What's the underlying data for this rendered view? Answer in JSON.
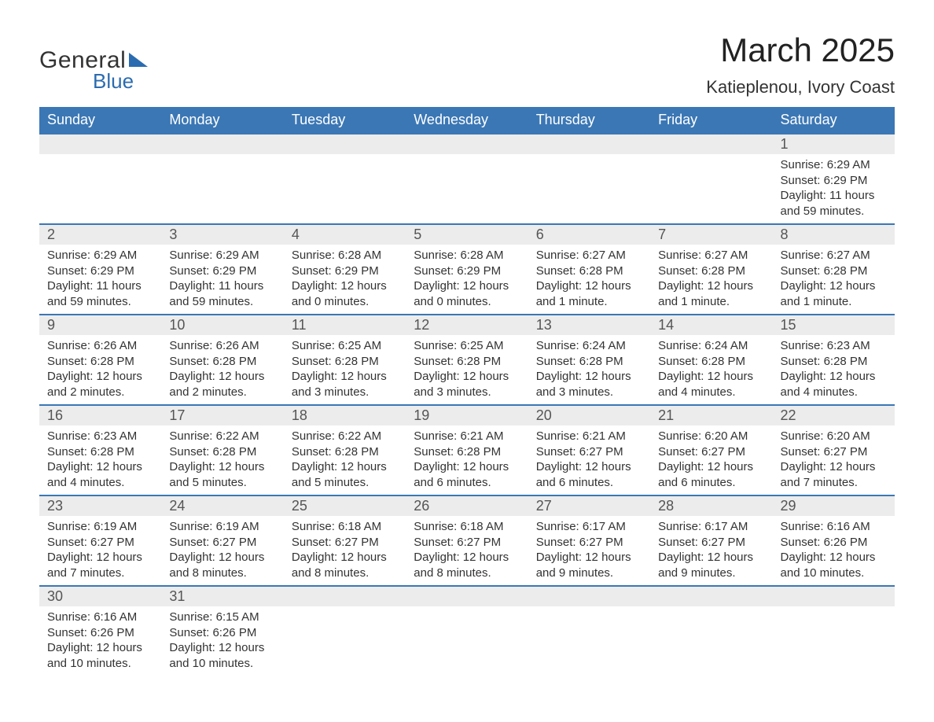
{
  "logo": {
    "word1": "General",
    "word2": "Blue"
  },
  "title": "March 2025",
  "location": "Katieplenou, Ivory Coast",
  "headerColor": "#3b77b5",
  "dayHeaders": [
    "Sunday",
    "Monday",
    "Tuesday",
    "Wednesday",
    "Thursday",
    "Friday",
    "Saturday"
  ],
  "weeks": [
    [
      null,
      null,
      null,
      null,
      null,
      null,
      {
        "n": "1",
        "sr": "Sunrise: 6:29 AM",
        "ss": "Sunset: 6:29 PM",
        "d1": "Daylight: 11 hours",
        "d2": "and 59 minutes."
      }
    ],
    [
      {
        "n": "2",
        "sr": "Sunrise: 6:29 AM",
        "ss": "Sunset: 6:29 PM",
        "d1": "Daylight: 11 hours",
        "d2": "and 59 minutes."
      },
      {
        "n": "3",
        "sr": "Sunrise: 6:29 AM",
        "ss": "Sunset: 6:29 PM",
        "d1": "Daylight: 11 hours",
        "d2": "and 59 minutes."
      },
      {
        "n": "4",
        "sr": "Sunrise: 6:28 AM",
        "ss": "Sunset: 6:29 PM",
        "d1": "Daylight: 12 hours",
        "d2": "and 0 minutes."
      },
      {
        "n": "5",
        "sr": "Sunrise: 6:28 AM",
        "ss": "Sunset: 6:29 PM",
        "d1": "Daylight: 12 hours",
        "d2": "and 0 minutes."
      },
      {
        "n": "6",
        "sr": "Sunrise: 6:27 AM",
        "ss": "Sunset: 6:28 PM",
        "d1": "Daylight: 12 hours",
        "d2": "and 1 minute."
      },
      {
        "n": "7",
        "sr": "Sunrise: 6:27 AM",
        "ss": "Sunset: 6:28 PM",
        "d1": "Daylight: 12 hours",
        "d2": "and 1 minute."
      },
      {
        "n": "8",
        "sr": "Sunrise: 6:27 AM",
        "ss": "Sunset: 6:28 PM",
        "d1": "Daylight: 12 hours",
        "d2": "and 1 minute."
      }
    ],
    [
      {
        "n": "9",
        "sr": "Sunrise: 6:26 AM",
        "ss": "Sunset: 6:28 PM",
        "d1": "Daylight: 12 hours",
        "d2": "and 2 minutes."
      },
      {
        "n": "10",
        "sr": "Sunrise: 6:26 AM",
        "ss": "Sunset: 6:28 PM",
        "d1": "Daylight: 12 hours",
        "d2": "and 2 minutes."
      },
      {
        "n": "11",
        "sr": "Sunrise: 6:25 AM",
        "ss": "Sunset: 6:28 PM",
        "d1": "Daylight: 12 hours",
        "d2": "and 3 minutes."
      },
      {
        "n": "12",
        "sr": "Sunrise: 6:25 AM",
        "ss": "Sunset: 6:28 PM",
        "d1": "Daylight: 12 hours",
        "d2": "and 3 minutes."
      },
      {
        "n": "13",
        "sr": "Sunrise: 6:24 AM",
        "ss": "Sunset: 6:28 PM",
        "d1": "Daylight: 12 hours",
        "d2": "and 3 minutes."
      },
      {
        "n": "14",
        "sr": "Sunrise: 6:24 AM",
        "ss": "Sunset: 6:28 PM",
        "d1": "Daylight: 12 hours",
        "d2": "and 4 minutes."
      },
      {
        "n": "15",
        "sr": "Sunrise: 6:23 AM",
        "ss": "Sunset: 6:28 PM",
        "d1": "Daylight: 12 hours",
        "d2": "and 4 minutes."
      }
    ],
    [
      {
        "n": "16",
        "sr": "Sunrise: 6:23 AM",
        "ss": "Sunset: 6:28 PM",
        "d1": "Daylight: 12 hours",
        "d2": "and 4 minutes."
      },
      {
        "n": "17",
        "sr": "Sunrise: 6:22 AM",
        "ss": "Sunset: 6:28 PM",
        "d1": "Daylight: 12 hours",
        "d2": "and 5 minutes."
      },
      {
        "n": "18",
        "sr": "Sunrise: 6:22 AM",
        "ss": "Sunset: 6:28 PM",
        "d1": "Daylight: 12 hours",
        "d2": "and 5 minutes."
      },
      {
        "n": "19",
        "sr": "Sunrise: 6:21 AM",
        "ss": "Sunset: 6:28 PM",
        "d1": "Daylight: 12 hours",
        "d2": "and 6 minutes."
      },
      {
        "n": "20",
        "sr": "Sunrise: 6:21 AM",
        "ss": "Sunset: 6:27 PM",
        "d1": "Daylight: 12 hours",
        "d2": "and 6 minutes."
      },
      {
        "n": "21",
        "sr": "Sunrise: 6:20 AM",
        "ss": "Sunset: 6:27 PM",
        "d1": "Daylight: 12 hours",
        "d2": "and 6 minutes."
      },
      {
        "n": "22",
        "sr": "Sunrise: 6:20 AM",
        "ss": "Sunset: 6:27 PM",
        "d1": "Daylight: 12 hours",
        "d2": "and 7 minutes."
      }
    ],
    [
      {
        "n": "23",
        "sr": "Sunrise: 6:19 AM",
        "ss": "Sunset: 6:27 PM",
        "d1": "Daylight: 12 hours",
        "d2": "and 7 minutes."
      },
      {
        "n": "24",
        "sr": "Sunrise: 6:19 AM",
        "ss": "Sunset: 6:27 PM",
        "d1": "Daylight: 12 hours",
        "d2": "and 8 minutes."
      },
      {
        "n": "25",
        "sr": "Sunrise: 6:18 AM",
        "ss": "Sunset: 6:27 PM",
        "d1": "Daylight: 12 hours",
        "d2": "and 8 minutes."
      },
      {
        "n": "26",
        "sr": "Sunrise: 6:18 AM",
        "ss": "Sunset: 6:27 PM",
        "d1": "Daylight: 12 hours",
        "d2": "and 8 minutes."
      },
      {
        "n": "27",
        "sr": "Sunrise: 6:17 AM",
        "ss": "Sunset: 6:27 PM",
        "d1": "Daylight: 12 hours",
        "d2": "and 9 minutes."
      },
      {
        "n": "28",
        "sr": "Sunrise: 6:17 AM",
        "ss": "Sunset: 6:27 PM",
        "d1": "Daylight: 12 hours",
        "d2": "and 9 minutes."
      },
      {
        "n": "29",
        "sr": "Sunrise: 6:16 AM",
        "ss": "Sunset: 6:26 PM",
        "d1": "Daylight: 12 hours",
        "d2": "and 10 minutes."
      }
    ],
    [
      {
        "n": "30",
        "sr": "Sunrise: 6:16 AM",
        "ss": "Sunset: 6:26 PM",
        "d1": "Daylight: 12 hours",
        "d2": "and 10 minutes."
      },
      {
        "n": "31",
        "sr": "Sunrise: 6:15 AM",
        "ss": "Sunset: 6:26 PM",
        "d1": "Daylight: 12 hours",
        "d2": "and 10 minutes."
      },
      null,
      null,
      null,
      null,
      null
    ]
  ]
}
